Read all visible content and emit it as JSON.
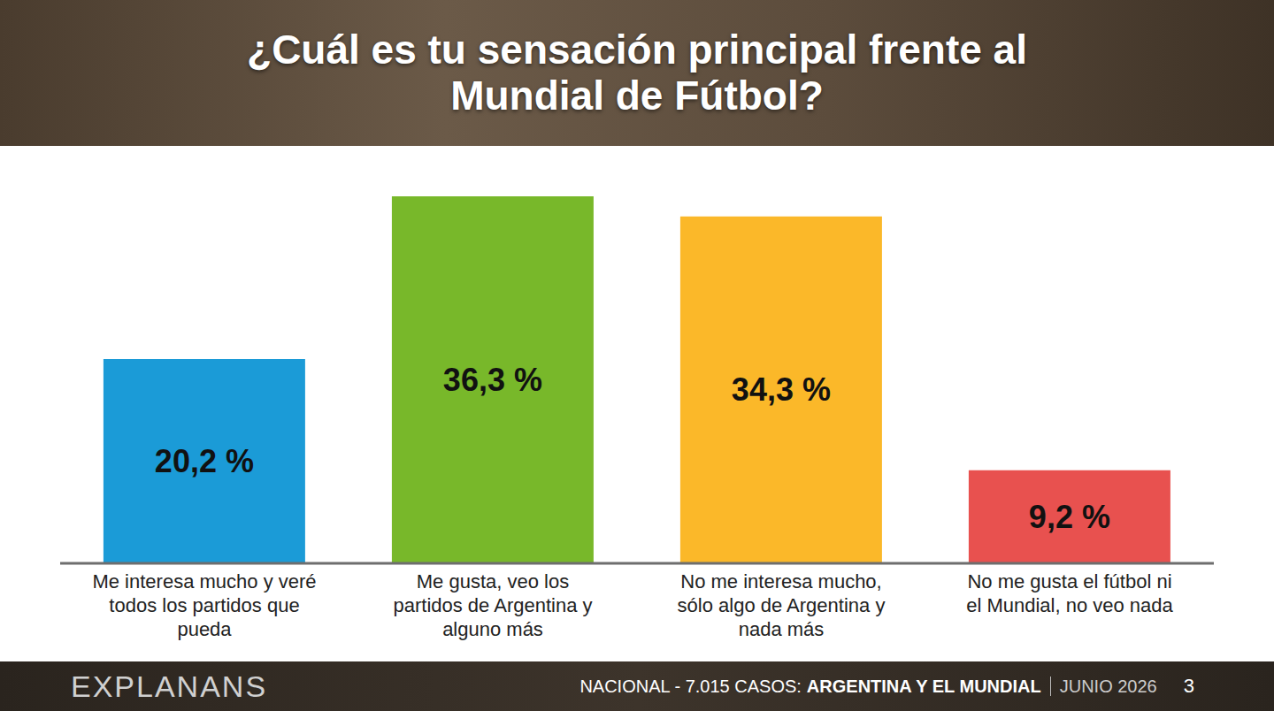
{
  "chart_data": {
    "type": "bar",
    "title": "¿Cuál es tu sensación principal frente al Mundial de Fútbol?",
    "categories": [
      "Me interesa mucho y veré todos los partidos que pueda",
      "Me gusta, veo los partidos de Argentina y alguno más",
      "No me interesa mucho, sólo algo de Argentina y nada más",
      "No me gusta el fútbol ni el Mundial, no veo nada"
    ],
    "values": [
      20.2,
      36.3,
      34.3,
      9.2
    ],
    "value_labels": [
      "20,2 %",
      "36,3 %",
      "34,3 %",
      "9,2 %"
    ],
    "colors": [
      "#1b9bd7",
      "#78b82a",
      "#fbb829",
      "#e8514f"
    ],
    "data_labels": true,
    "tick_labels": "x"
  },
  "footer": {
    "brand": "EXPLANANS",
    "source": "NACIONAL - 7.015 CASOS:",
    "topic": "ARGENTINA Y EL MUNDIAL",
    "date": "JUNIO 2026",
    "page": "3"
  }
}
